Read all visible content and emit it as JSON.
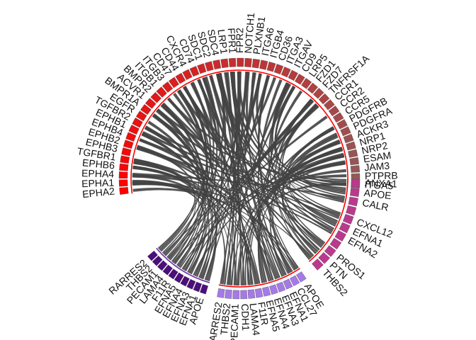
{
  "chart_data": {
    "type": "chord",
    "colors": {
      "receptor_start": "#ff0000",
      "receptor_end": "#8f5b5b",
      "ligand_pink": "#b93a8c",
      "ligand_lavender": "#a57ae8",
      "ligand_purple": "#4b0e7a",
      "link": "#454545",
      "ring": "#ff0000",
      "ring_purple": "#6a2aa8"
    },
    "receptor_sectors": [
      "EPHA2",
      "EPHA1",
      "EPHA4",
      "EPHB6",
      "TGFBR1",
      "EPHB3",
      "EPHB2",
      "EPHB4",
      "EPHB1",
      "TGFBR2",
      "EGFR",
      "BMPR1A",
      "ACVR1",
      "BMPR2",
      "ITGB1",
      "ITGB3",
      "CD47",
      "CD44",
      "CXCR4",
      "CD74",
      "SDC1",
      "SDC2",
      "SDC4",
      "LRP1",
      "FPR1",
      "FPR2",
      "NOTCH1",
      "PLXNB1",
      "ITGA6",
      "ITGB4",
      "CD36",
      "ITGA3",
      "ITGAV",
      "CD9",
      "LRP5",
      "FZD1",
      "FZD7",
      "TNFRSF1A",
      "CCR1",
      "CCR2",
      "CCR5",
      "PDGFRB",
      "PDGFRA",
      "ACKR3",
      "NRP1",
      "NRP2",
      "ESAM",
      "JAM3",
      "PTPRB",
      "ITGA5"
    ],
    "ligand_sectors": {
      "pink": [
        "ANXA1",
        "APOE",
        "CALR",
        "",
        "CXCL12",
        "EFNA1",
        "EFNA2",
        "",
        "PROS1",
        "PTN",
        "THBS2"
      ],
      "lavender": [
        "APOE",
        "CCL27",
        "EFNA1",
        "EFNA3",
        "EFNA4",
        "EFNA5",
        "F11R",
        "LAMA4",
        "CDH1",
        "PECAM1",
        "THBS2",
        "RARRES2"
      ],
      "purple": [
        "APOE",
        "EFNA1",
        "EFNA3",
        "EFNA4",
        "EFNA5",
        "F11R",
        "LAMA4",
        "PECAM1",
        "THBS2",
        "RARRES2"
      ]
    }
  }
}
